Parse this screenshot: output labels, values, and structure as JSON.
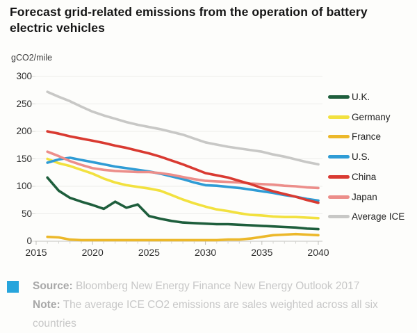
{
  "title": "Forecast grid-related emissions from the operation of battery electric vehicles",
  "unit_label": "gCO2/mile",
  "footer": {
    "source_label": "Source:",
    "source_text": " Bloomberg New Energy Finance New Energy Outlook 2017",
    "note_label": "Note:",
    "note_text": " The average ICE CO2 emissions are sales weighted across all six countries",
    "brand_square_color": "#27a5dc"
  },
  "chart_data": {
    "type": "line",
    "title": "Forecast grid-related emissions from the operation of battery electric vehicles",
    "ylabel": "gCO2/mile",
    "xlabel": "",
    "x": [
      2016,
      2017,
      2018,
      2019,
      2020,
      2021,
      2022,
      2023,
      2024,
      2025,
      2026,
      2027,
      2028,
      2029,
      2030,
      2031,
      2032,
      2033,
      2034,
      2035,
      2036,
      2037,
      2038,
      2039,
      2040
    ],
    "series": [
      {
        "name": "U.K.",
        "color": "#1e5e3c",
        "values": [
          116,
          92,
          79,
          72,
          66,
          59,
          72,
          61,
          67,
          46,
          41,
          37,
          34,
          33,
          32,
          31,
          31,
          30,
          29,
          28,
          27,
          26,
          25,
          23,
          22
        ]
      },
      {
        "name": "Germany",
        "color": "#f2e13f",
        "values": [
          150,
          142,
          137,
          130,
          123,
          114,
          107,
          102,
          99,
          96,
          92,
          84,
          76,
          69,
          63,
          58,
          55,
          51,
          48,
          47,
          45,
          44,
          44,
          43,
          42
        ]
      },
      {
        "name": "France",
        "color": "#ecb82a",
        "values": [
          8,
          7,
          3,
          2,
          2,
          2,
          2,
          2,
          2,
          2,
          2,
          2,
          2,
          2,
          2,
          2,
          3,
          3,
          5,
          8,
          11,
          12,
          13,
          12,
          11
        ]
      },
      {
        "name": "U.S.",
        "color": "#2f9cd5",
        "values": [
          143,
          149,
          152,
          148,
          144,
          140,
          136,
          133,
          130,
          127,
          123,
          118,
          113,
          107,
          102,
          101,
          99,
          97,
          94,
          91,
          88,
          84,
          81,
          77,
          74
        ]
      },
      {
        "name": "China",
        "color": "#d93a31",
        "values": [
          200,
          196,
          191,
          187,
          183,
          179,
          174,
          170,
          165,
          160,
          154,
          147,
          140,
          132,
          124,
          120,
          116,
          110,
          104,
          97,
          91,
          86,
          81,
          75,
          70
        ]
      },
      {
        "name": "Japan",
        "color": "#ec8e8a",
        "values": [
          163,
          155,
          146,
          139,
          133,
          130,
          128,
          127,
          126,
          126,
          124,
          121,
          117,
          113,
          110,
          109,
          108,
          107,
          105,
          104,
          103,
          101,
          100,
          98,
          97
        ]
      },
      {
        "name": "Average ICE",
        "color": "#c8c8c6",
        "values": [
          272,
          263,
          255,
          245,
          236,
          229,
          223,
          217,
          212,
          208,
          204,
          199,
          194,
          187,
          180,
          176,
          172,
          169,
          166,
          163,
          158,
          154,
          149,
          144,
          140
        ]
      }
    ],
    "draw_order": [
      "Average ICE",
      "France",
      "Germany",
      "U.S.",
      "Japan",
      "U.K.",
      "China"
    ],
    "xlim": [
      2015,
      2040
    ],
    "x_ticks": [
      2015,
      2020,
      2025,
      2030,
      2035,
      2040
    ],
    "ylim": [
      0,
      300
    ],
    "y_ticks": [
      0,
      50,
      100,
      150,
      200,
      250,
      300
    ],
    "grid": "horizontal-faint",
    "legend_position": "right"
  }
}
